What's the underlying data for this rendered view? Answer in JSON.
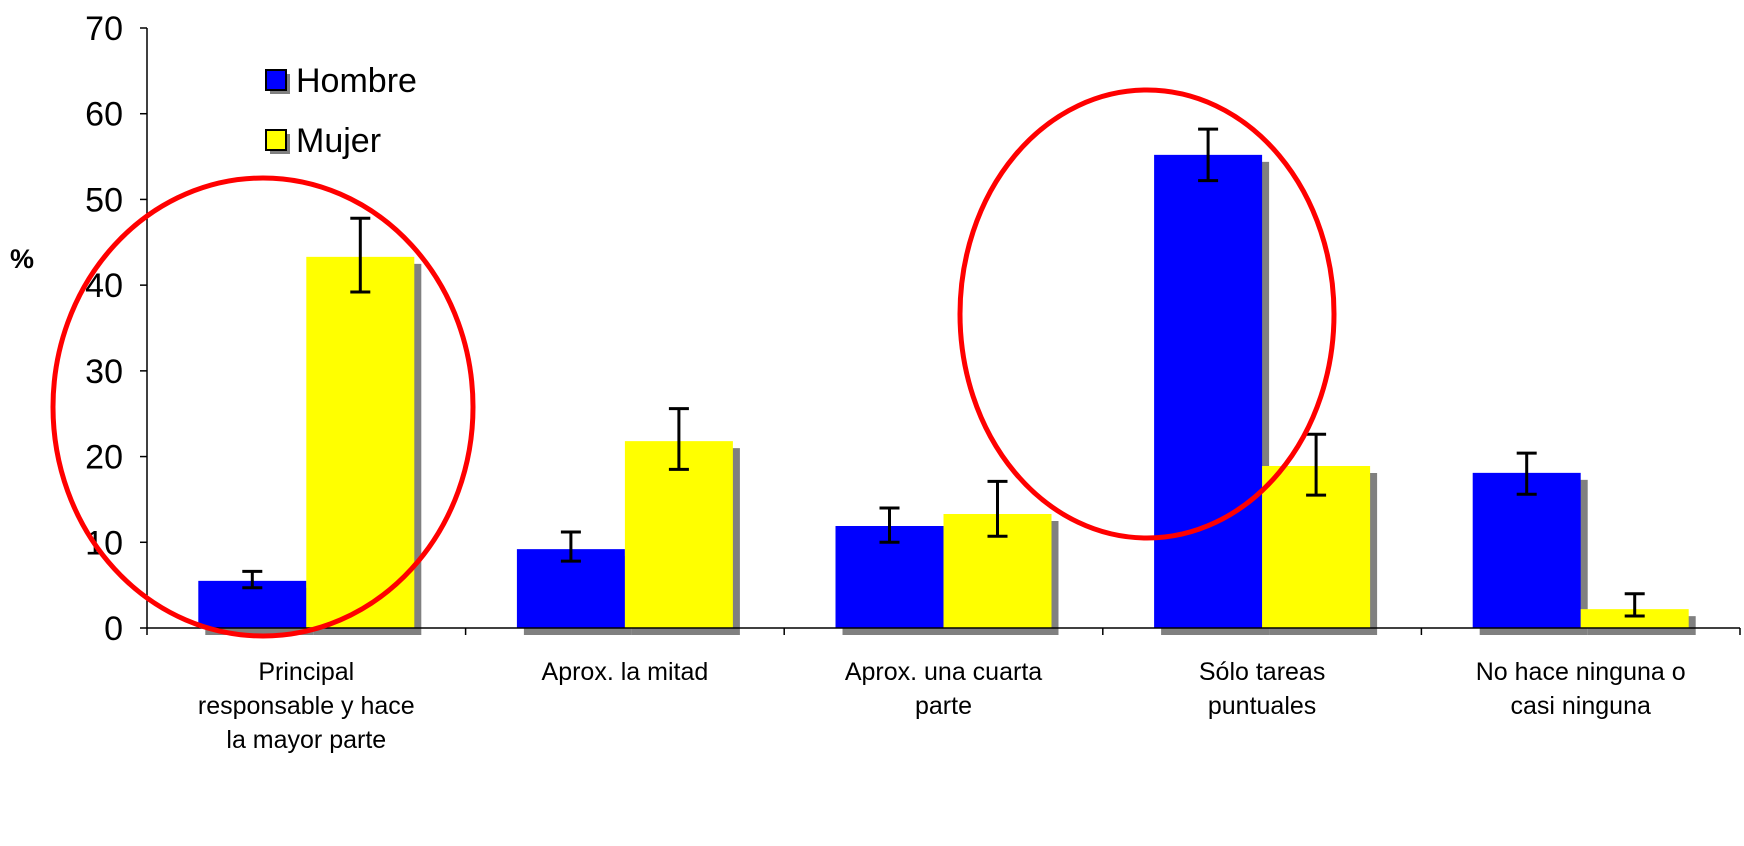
{
  "chart_data": {
    "type": "bar",
    "title": "",
    "xlabel": "",
    "ylabel": "%",
    "ylim": [
      0,
      70
    ],
    "yticks": [
      0,
      10,
      20,
      30,
      40,
      50,
      60,
      70
    ],
    "grid": false,
    "legend_position": "top-left",
    "categories": [
      [
        "Principal",
        "responsable y hace",
        "la mayor parte"
      ],
      [
        "Aprox. la mitad"
      ],
      [
        "Aprox. una cuarta",
        "parte"
      ],
      [
        "Sólo tareas",
        "puntuales"
      ],
      [
        "No hace ninguna o",
        "casi ninguna"
      ]
    ],
    "series": [
      {
        "name": "Hombre",
        "color": "#0000ff",
        "values": [
          5.5,
          9.2,
          11.9,
          55.2,
          18.1
        ],
        "error_low": [
          4.7,
          7.8,
          10.0,
          52.2,
          15.6
        ],
        "error_high": [
          6.6,
          11.2,
          14.0,
          58.2,
          20.4
        ]
      },
      {
        "name": "Mujer",
        "color": "#ffff00",
        "values": [
          43.3,
          21.8,
          13.3,
          18.9,
          2.2
        ],
        "error_low": [
          39.2,
          18.5,
          10.7,
          15.5,
          1.4
        ],
        "error_high": [
          47.8,
          25.6,
          17.1,
          22.6,
          4.0
        ]
      }
    ],
    "annotations": [
      {
        "type": "ellipse",
        "color": "#ff0000",
        "encloses_category": 0
      },
      {
        "type": "ellipse",
        "color": "#ff0000",
        "encloses_category": 3
      }
    ]
  }
}
